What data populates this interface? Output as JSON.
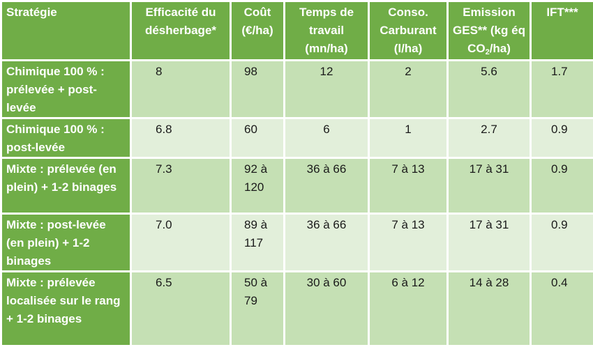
{
  "table": {
    "headers": [
      "Stratégie",
      "Efficacité du désherbage*",
      "Coût (€/ha)",
      "Temps de travail (mn/ha)",
      "Conso. Carburant (l/ha)",
      "Emission GES** (kg éq CO",
      "IFT***"
    ],
    "header_emission_sub": "2",
    "header_emission_suffix": "/ha)",
    "rows": [
      {
        "strategy": "Chimique 100 % : prélevée + post-levée",
        "efficacite": "8",
        "cout": "98",
        "temps": "12",
        "carburant": "2",
        "emission": "5.6",
        "ift": "1.7"
      },
      {
        "strategy": "Chimique 100 % : post-levée",
        "efficacite": "6.8",
        "cout": "60",
        "temps": "6",
        "carburant": "1",
        "emission": "2.7",
        "ift": "0.9"
      },
      {
        "strategy": "Mixte : prélevée (en plein) + 1-2 binages",
        "efficacite": "7.3",
        "cout": "92 à 120",
        "temps": "36 à 66",
        "carburant": "7 à 13",
        "emission": "17 à 31",
        "ift": "0.9"
      },
      {
        "strategy": "Mixte : post-levée (en plein) + 1-2 binages",
        "efficacite": "7.0",
        "cout": "89 à 117",
        "temps": "36 à 66",
        "carburant": "7 à 13",
        "emission": "17 à 31",
        "ift": "0.9"
      },
      {
        "strategy": "Mixte : prélevée localisée sur le rang + 1-2 binages",
        "efficacite": "6.5",
        "cout": "50 à 79",
        "temps": "30 à 60",
        "carburant": "6 à 12",
        "emission": "14 à 28",
        "ift": "0.4"
      }
    ]
  },
  "colors": {
    "header_green": "#70ad47",
    "row_dark": "#c5e0b4",
    "row_light": "#e2efda",
    "border": "#ffffff"
  }
}
